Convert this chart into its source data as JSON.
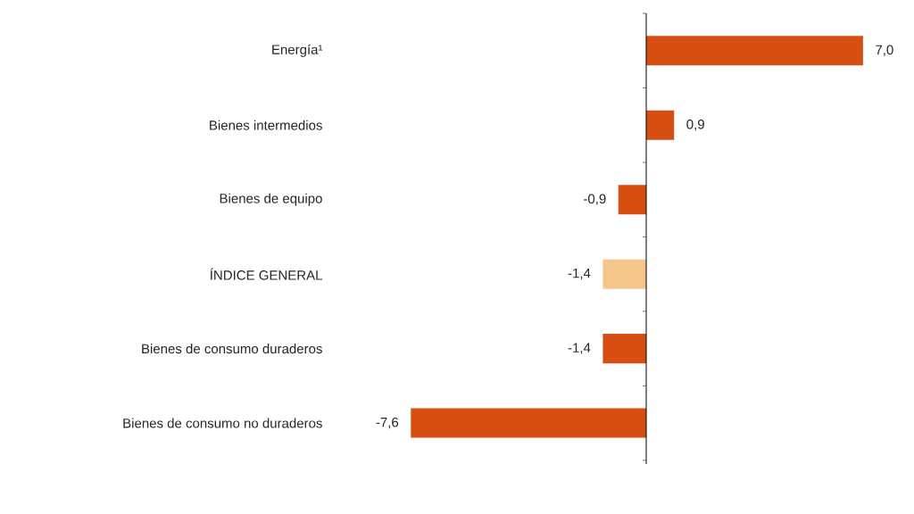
{
  "chart_data": {
    "type": "bar",
    "orientation": "horizontal",
    "categories": [
      "Energía¹",
      "Bienes intermedios",
      "Bienes de equipo",
      "ÍNDICE GENERAL",
      "Bienes de consumo duraderos",
      "Bienes de consumo no duraderos"
    ],
    "values": [
      7.0,
      0.9,
      -0.9,
      -1.4,
      -1.4,
      -7.6
    ],
    "colors": [
      "#d64e12",
      "#d64e12",
      "#d64e12",
      "#f5c68a",
      "#d64e12",
      "#d64e12"
    ],
    "value_labels": [
      "7,0",
      "0,9",
      "-0,9",
      "-1,4",
      "-1,4",
      "-7,6"
    ]
  }
}
